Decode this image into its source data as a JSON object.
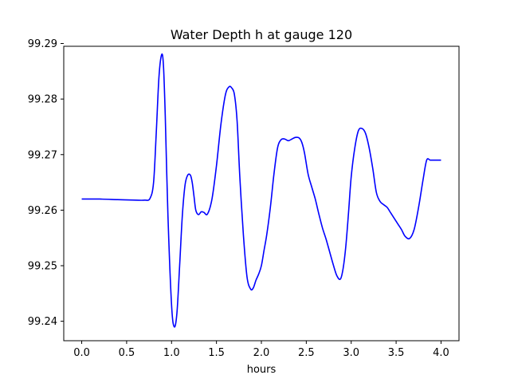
{
  "chart_data": {
    "type": "line",
    "title": "Water Depth h at gauge 120",
    "xlabel": "hours",
    "ylabel": "",
    "xlim": [
      -0.2,
      4.2
    ],
    "ylim": [
      99.2365,
      99.2895
    ],
    "grid": false,
    "xticks": [
      0.0,
      0.5,
      1.0,
      1.5,
      2.0,
      2.5,
      3.0,
      3.5,
      4.0
    ],
    "xtick_labels": [
      "0.0",
      "0.5",
      "1.0",
      "1.5",
      "2.0",
      "2.5",
      "3.0",
      "3.5",
      "4.0"
    ],
    "yticks": [
      99.24,
      99.25,
      99.26,
      99.27,
      99.28,
      99.29
    ],
    "ytick_labels": [
      "99.24",
      "99.25",
      "99.26",
      "99.27",
      "99.28",
      "99.29"
    ],
    "series": [
      {
        "color": "#0000ff",
        "x": [
          0.0,
          0.2,
          0.4,
          0.6,
          0.7,
          0.76,
          0.8,
          0.83,
          0.86,
          0.89,
          0.91,
          0.93,
          0.96,
          1.0,
          1.03,
          1.06,
          1.09,
          1.12,
          1.15,
          1.18,
          1.21,
          1.23,
          1.25,
          1.27,
          1.3,
          1.33,
          1.36,
          1.4,
          1.45,
          1.5,
          1.55,
          1.6,
          1.64,
          1.67,
          1.7,
          1.73,
          1.76,
          1.8,
          1.84,
          1.88,
          1.91,
          1.94,
          1.97,
          2.0,
          2.03,
          2.06,
          2.1,
          2.14,
          2.18,
          2.22,
          2.26,
          2.3,
          2.34,
          2.38,
          2.42,
          2.45,
          2.48,
          2.52,
          2.56,
          2.6,
          2.64,
          2.68,
          2.72,
          2.76,
          2.8,
          2.84,
          2.88,
          2.91,
          2.94,
          2.97,
          3.0,
          3.04,
          3.08,
          3.12,
          3.16,
          3.2,
          3.24,
          3.28,
          3.32,
          3.36,
          3.4,
          3.44,
          3.48,
          3.52,
          3.56,
          3.6,
          3.65,
          3.7,
          3.75,
          3.8,
          3.84,
          3.88,
          3.92,
          3.96,
          4.0
        ],
        "values": [
          99.262,
          99.262,
          99.2619,
          99.2618,
          99.2618,
          99.2621,
          99.265,
          99.274,
          99.284,
          99.288,
          99.286,
          99.277,
          99.259,
          99.243,
          99.239,
          99.2415,
          99.25,
          99.259,
          99.2645,
          99.2663,
          99.2663,
          99.265,
          99.2625,
          99.26,
          99.2592,
          99.2597,
          99.2596,
          99.2593,
          99.262,
          99.268,
          99.2755,
          99.2808,
          99.2822,
          99.282,
          99.2808,
          99.276,
          99.266,
          99.2555,
          99.248,
          99.2458,
          99.246,
          99.2474,
          99.2485,
          99.25,
          99.2528,
          99.2556,
          99.2605,
          99.2665,
          99.2712,
          99.2727,
          99.2728,
          99.2725,
          99.2728,
          99.2731,
          99.273,
          99.2722,
          99.2703,
          99.2665,
          99.2642,
          99.262,
          99.2593,
          99.2568,
          99.2548,
          99.2525,
          99.2502,
          99.2482,
          99.2476,
          99.2495,
          99.2535,
          99.2595,
          99.266,
          99.2712,
          99.2743,
          99.2747,
          99.2738,
          99.2712,
          99.2675,
          99.2632,
          99.2616,
          99.261,
          99.2605,
          99.2595,
          99.2585,
          99.2575,
          99.2565,
          99.2553,
          99.2549,
          99.2565,
          99.2605,
          99.2655,
          99.269,
          99.269,
          99.269,
          99.269,
          99.269
        ]
      }
    ]
  }
}
